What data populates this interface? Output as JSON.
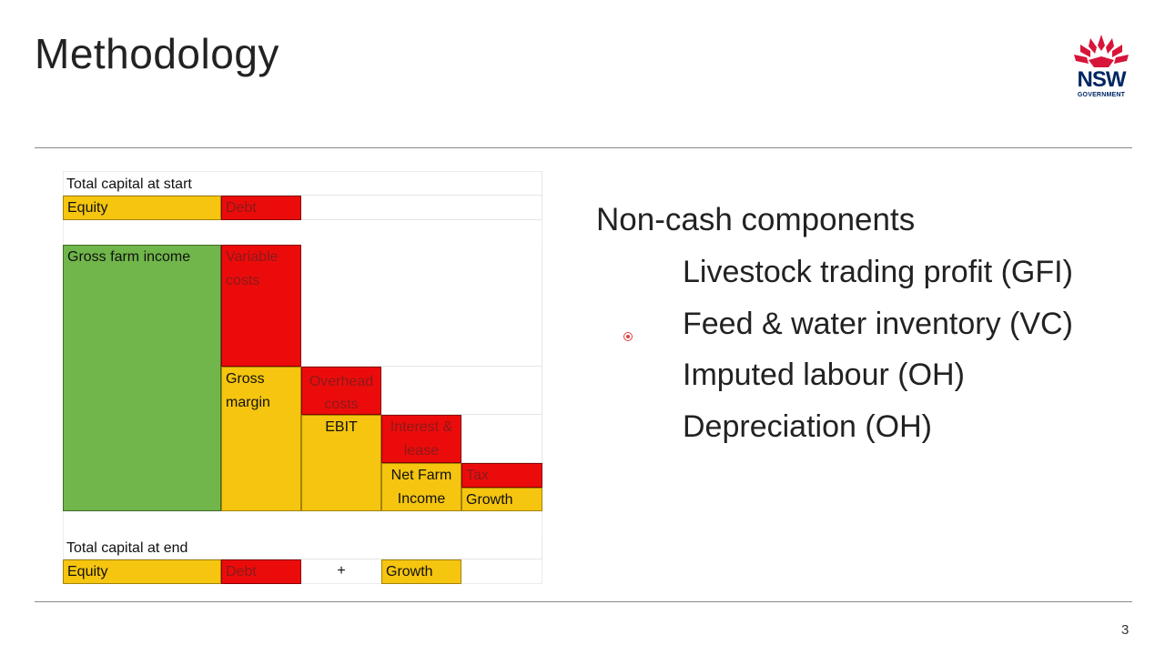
{
  "slide": {
    "title": "Methodology",
    "page_number": "3"
  },
  "logo": {
    "line1": "NSW",
    "line2": "GOVERNMENT"
  },
  "diagram": {
    "total_start": "Total capital at start",
    "equity": "Equity",
    "debt": "Debt",
    "gross_farm_income": "Gross farm income",
    "variable_costs": "Variable costs",
    "gross_margin": "Gross margin",
    "overhead_costs": "Overhead costs",
    "ebit": "EBIT",
    "interest_lease": "Interest & lease",
    "net_farm_income": "Net Farm Income",
    "tax": "Tax",
    "growth": "Growth",
    "total_end": "Total capital at end",
    "equity_end": "Equity",
    "debt_end": "Debt",
    "plus": "+",
    "growth_end": "Growth"
  },
  "content": {
    "heading": "Non-cash components",
    "items": [
      "Livestock trading profit (GFI)",
      "Feed & water inventory (VC)",
      "Imputed labour (OH)",
      "Depreciation (OH)"
    ]
  },
  "colors": {
    "green": "#70b64a",
    "yellow": "#f5c50f",
    "red": "#ec0b0b",
    "logo_red": "#d7153a",
    "logo_navy": "#002664"
  }
}
